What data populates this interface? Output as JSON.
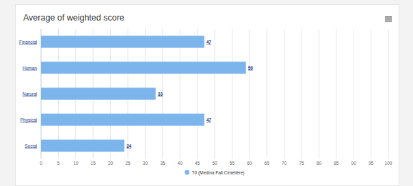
{
  "chart_data": {
    "type": "bar",
    "orientation": "horizontal",
    "title": "Average of weighted score",
    "categories": [
      "Financial",
      "Human",
      "Natural",
      "Physical",
      "Social"
    ],
    "series": [
      {
        "name": "T0 (Medina Fall Cimetière)",
        "color": "#7cb5ec",
        "values": [
          47,
          59,
          33,
          47,
          24
        ]
      }
    ],
    "xlim": [
      0,
      100
    ],
    "xticks": [
      0,
      5,
      10,
      15,
      20,
      25,
      30,
      35,
      40,
      45,
      50,
      55,
      60,
      65,
      70,
      75,
      80,
      85,
      90,
      95,
      100
    ],
    "grid": true,
    "data_labels": true,
    "legend": "bottom"
  }
}
